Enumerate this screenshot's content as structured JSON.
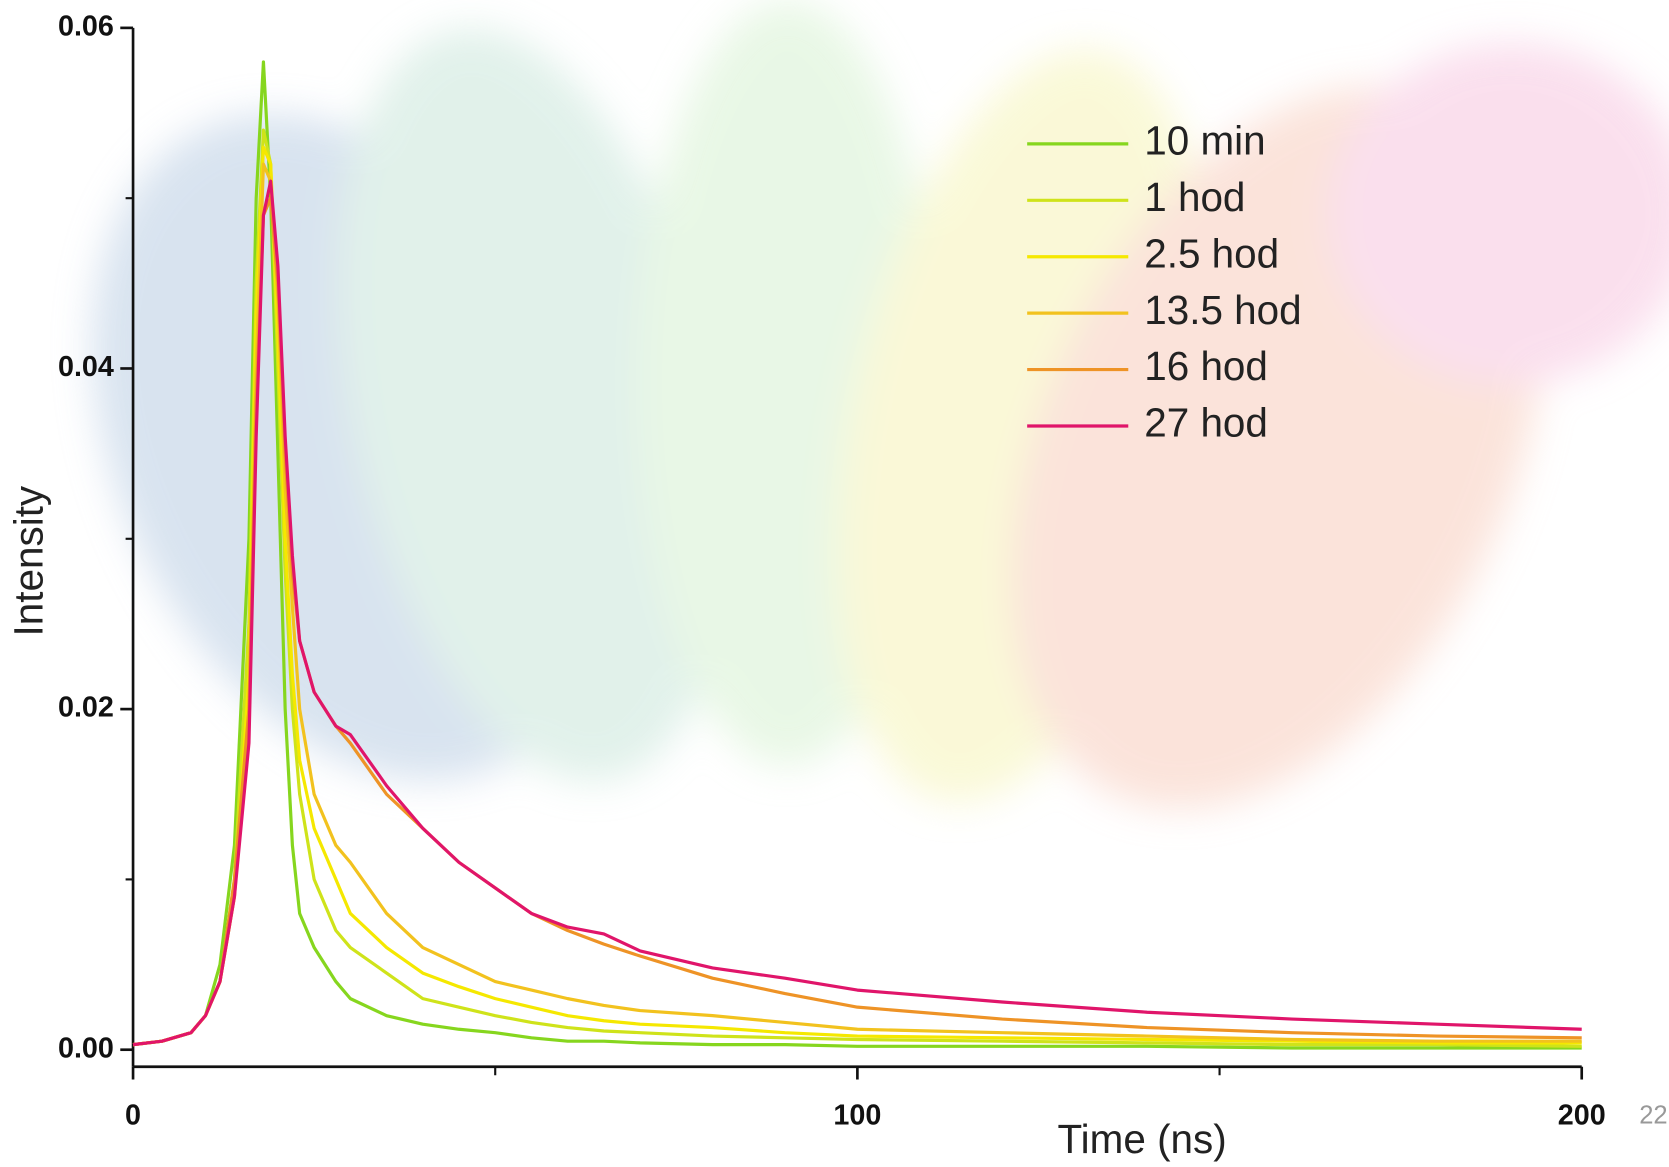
{
  "chart_data": {
    "type": "line",
    "xlabel": "Time (ns)",
    "ylabel": "Intensity",
    "xlim": [
      0,
      200
    ],
    "xticks": [
      0,
      100,
      200
    ],
    "xminor_ticks": [
      50,
      150
    ],
    "ylim": [
      -0.001,
      0.06
    ],
    "yticks": [
      {
        "value": 0,
        "label": "0.00"
      },
      0.02,
      0.04,
      0.06
    ],
    "yminor_ticks": [
      0.01,
      0.03,
      0.05
    ],
    "grid": false,
    "legend": "upper right",
    "x": [
      0,
      4,
      8,
      10,
      12,
      14,
      16,
      17,
      18,
      19,
      20,
      21,
      22,
      23,
      25,
      28,
      30,
      35,
      40,
      45,
      50,
      55,
      60,
      65,
      70,
      80,
      90,
      100,
      120,
      140,
      160,
      180,
      200
    ],
    "series": [
      {
        "name": "10 min",
        "color": "#86d61e",
        "values": [
          0.0003,
          0.0005,
          0.001,
          0.002,
          0.005,
          0.012,
          0.03,
          0.05,
          0.058,
          0.05,
          0.035,
          0.02,
          0.012,
          0.008,
          0.006,
          0.004,
          0.003,
          0.002,
          0.0015,
          0.0012,
          0.001,
          0.0007,
          0.0005,
          0.0005,
          0.0004,
          0.0003,
          0.0003,
          0.0002,
          0.0002,
          0.0002,
          0.0001,
          0.0001,
          0.0001
        ]
      },
      {
        "name": "1 hod",
        "color": "#cfe31a",
        "values": [
          0.0003,
          0.0005,
          0.001,
          0.002,
          0.004,
          0.01,
          0.025,
          0.045,
          0.054,
          0.052,
          0.04,
          0.028,
          0.02,
          0.015,
          0.01,
          0.007,
          0.006,
          0.0045,
          0.003,
          0.0025,
          0.002,
          0.0016,
          0.0013,
          0.0011,
          0.001,
          0.0008,
          0.0007,
          0.0006,
          0.0005,
          0.0004,
          0.0003,
          0.0003,
          0.0002
        ]
      },
      {
        "name": "2.5 hod",
        "color": "#f5e800",
        "values": [
          0.0003,
          0.0005,
          0.001,
          0.002,
          0.004,
          0.009,
          0.022,
          0.043,
          0.053,
          0.052,
          0.042,
          0.03,
          0.022,
          0.017,
          0.013,
          0.01,
          0.008,
          0.006,
          0.0045,
          0.0037,
          0.003,
          0.0025,
          0.002,
          0.0017,
          0.0015,
          0.0013,
          0.001,
          0.0008,
          0.0007,
          0.0006,
          0.0005,
          0.0004,
          0.0004
        ]
      },
      {
        "name": "13.5 hod",
        "color": "#f2c21e",
        "values": [
          0.0003,
          0.0005,
          0.001,
          0.002,
          0.004,
          0.009,
          0.02,
          0.04,
          0.052,
          0.051,
          0.044,
          0.033,
          0.026,
          0.02,
          0.015,
          0.012,
          0.011,
          0.008,
          0.006,
          0.005,
          0.004,
          0.0035,
          0.003,
          0.0026,
          0.0023,
          0.002,
          0.0016,
          0.0012,
          0.001,
          0.0008,
          0.0006,
          0.0005,
          0.0005
        ]
      },
      {
        "name": "16 hod",
        "color": "#ee9326",
        "values": [
          0.0003,
          0.0005,
          0.001,
          0.002,
          0.004,
          0.01,
          0.02,
          0.038,
          0.049,
          0.05,
          0.045,
          0.035,
          0.028,
          0.024,
          0.021,
          0.019,
          0.018,
          0.015,
          0.013,
          0.011,
          0.0095,
          0.008,
          0.007,
          0.0062,
          0.0055,
          0.0042,
          0.0033,
          0.0025,
          0.0018,
          0.0013,
          0.001,
          0.0008,
          0.0007
        ]
      },
      {
        "name": "27 hod",
        "color": "#e0156a",
        "values": [
          0.0003,
          0.0005,
          0.001,
          0.002,
          0.004,
          0.009,
          0.018,
          0.036,
          0.049,
          0.051,
          0.046,
          0.036,
          0.029,
          0.024,
          0.021,
          0.019,
          0.0185,
          0.0155,
          0.013,
          0.011,
          0.0095,
          0.008,
          0.0072,
          0.0068,
          0.0058,
          0.0048,
          0.0042,
          0.0035,
          0.0028,
          0.0022,
          0.0018,
          0.0015,
          0.0012
        ]
      }
    ]
  },
  "page_number": "22"
}
